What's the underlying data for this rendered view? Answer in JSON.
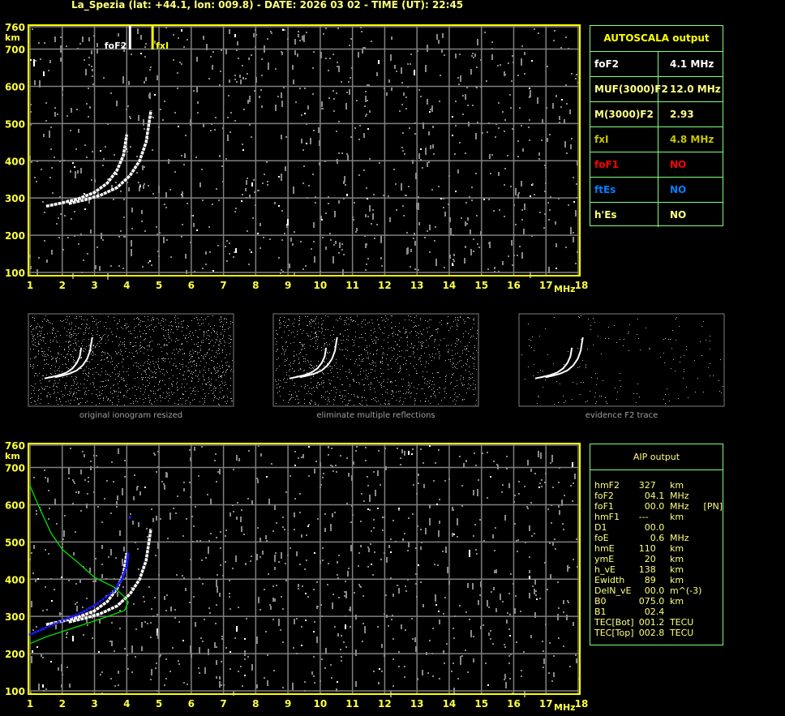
{
  "title": "La_Spezia (lat: +44.1, lon: 009.8) - DATE: 2026 03 02 - TIME (UT): 22:45",
  "colors": {
    "axis": "#ffff00",
    "grid": "#808080",
    "table_border": "#80ff80",
    "trace": "#ffffff",
    "aip_points": "#0000ff",
    "aip_profile": "#00e000",
    "foF1": "#ff0000",
    "ftEs": "#0080ff",
    "fxl": "#c8c800"
  },
  "autoscala": {
    "header": "AUTOSCALA output",
    "rows": [
      {
        "key": "foF2",
        "value": "4.1 MHz",
        "color": "#ffffff"
      },
      {
        "key": "MUF(3000)F2",
        "value": "12.0 MHz",
        "color": "#ffff80"
      },
      {
        "key": "M(3000)F2",
        "value": "2.93",
        "color": "#ffff80"
      },
      {
        "key": "fxI",
        "value": "4.8 MHz",
        "color": "#c8c800"
      },
      {
        "key": "foF1",
        "value": "NO",
        "color": "#ff0000"
      },
      {
        "key": "ftEs",
        "value": "NO",
        "color": "#0080ff"
      },
      {
        "key": "h'Es",
        "value": "NO",
        "color": "#ffff80"
      }
    ]
  },
  "aip": {
    "header": "AIP output",
    "rows": [
      {
        "key": "hmF2",
        "value": "327",
        "unit": "km",
        "extra": ""
      },
      {
        "key": "foF2",
        "value": "  04.1",
        "unit": "MHz",
        "extra": ""
      },
      {
        "key": "foF1",
        "value": "  00.0",
        "unit": "MHz",
        "extra": "[PN]"
      },
      {
        "key": "hmF1",
        "value": "---",
        "unit": "km",
        "extra": ""
      },
      {
        "key": "D1",
        "value": "  00.0",
        "unit": "",
        "extra": ""
      },
      {
        "key": "foE",
        "value": "    0.6",
        "unit": "MHz",
        "extra": ""
      },
      {
        "key": "hmE",
        "value": "110",
        "unit": "km",
        "extra": ""
      },
      {
        "key": "ymE",
        "value": "  20",
        "unit": "km",
        "extra": ""
      },
      {
        "key": "h_vE",
        "value": "138",
        "unit": "km",
        "extra": ""
      },
      {
        "key": "Ewidth",
        "value": "  89",
        "unit": "km",
        "extra": ""
      },
      {
        "key": "DelN_vE",
        "value": "  00.0",
        "unit": "m^(-3)",
        "extra": ""
      },
      {
        "key": "B0",
        "value": "075.0",
        "unit": "km",
        "extra": ""
      },
      {
        "key": "B1",
        "value": "  02.4",
        "unit": "",
        "extra": ""
      },
      {
        "key": "TEC[Bot]",
        "value": "001.2",
        "unit": "TECU",
        "extra": ""
      },
      {
        "key": "TEC[Top]",
        "value": "002.8",
        "unit": "TECU",
        "extra": ""
      }
    ]
  },
  "captions": [
    "original ionogram resized",
    "eliminate multiple reflections",
    "evidence F2 trace"
  ],
  "chart_data": [
    {
      "type": "scatter",
      "title": "",
      "xlabel": "MHz",
      "ylabel": "km",
      "xlim": [
        1,
        18
      ],
      "ylim": [
        100,
        760
      ],
      "xticks": [
        "1",
        "2",
        "3",
        "4",
        "5",
        "6",
        "7",
        "8",
        "9",
        "10",
        "11",
        "12",
        "13",
        "14",
        "15",
        "16",
        "17",
        "18"
      ],
      "yticks": [
        "100",
        "200",
        "300",
        "400",
        "500",
        "600",
        "700",
        "760"
      ],
      "grid": true,
      "markers": [
        {
          "label": "foF2",
          "x": 4.1,
          "color": "#ffffff"
        },
        {
          "label": "fxI",
          "x": 4.8,
          "color": "#ffff00"
        }
      ],
      "series": [
        {
          "points": [
            [
              1.5,
              278
            ],
            [
              2.0,
              287
            ],
            [
              2.5,
              298
            ],
            [
              3.0,
              315
            ],
            [
              3.4,
              340
            ],
            [
              3.7,
              375
            ],
            [
              3.9,
              415
            ],
            [
              4.0,
              470
            ]
          ]
        },
        {
          "points": [
            [
              2.2,
              285
            ],
            [
              2.7,
              295
            ],
            [
              3.2,
              308
            ],
            [
              3.7,
              328
            ],
            [
              4.1,
              360
            ],
            [
              4.4,
              400
            ],
            [
              4.6,
              450
            ],
            [
              4.75,
              535
            ]
          ]
        }
      ]
    },
    {
      "type": "line",
      "title": "",
      "xlabel": "MHz",
      "ylabel": "km",
      "xlim": [
        1,
        18
      ],
      "ylim": [
        100,
        760
      ],
      "xticks": [
        "1",
        "2",
        "3",
        "4",
        "5",
        "6",
        "7",
        "8",
        "9",
        "10",
        "11",
        "12",
        "13",
        "14",
        "15",
        "16",
        "17",
        "18"
      ],
      "yticks": [
        "100",
        "200",
        "300",
        "400",
        "500",
        "600",
        "700",
        "760"
      ],
      "grid": true,
      "series": [
        {
          "points": [
            [
              1.5,
              278
            ],
            [
              2.0,
              287
            ],
            [
              2.5,
              298
            ],
            [
              3.0,
              315
            ],
            [
              3.4,
              340
            ],
            [
              3.7,
              375
            ],
            [
              3.9,
              415
            ],
            [
              4.0,
              470
            ]
          ]
        },
        {
          "points": [
            [
              2.2,
              285
            ],
            [
              2.7,
              295
            ],
            [
              3.2,
              308
            ],
            [
              3.7,
              328
            ],
            [
              4.1,
              360
            ],
            [
              4.4,
              400
            ],
            [
              4.6,
              450
            ],
            [
              4.75,
              535
            ]
          ]
        },
        {
          "points": [
            [
              1.0,
              251
            ],
            [
              1.5,
              270
            ],
            [
              2.1,
              292
            ],
            [
              2.6,
              310
            ],
            [
              3.1,
              335
            ],
            [
              3.6,
              368
            ],
            [
              3.85,
              400
            ],
            [
              4.0,
              436
            ],
            [
              4.05,
              474
            ],
            [
              4.1,
              566
            ]
          ]
        },
        {
          "points": [
            [
              1.0,
              651
            ],
            [
              1.3,
              590
            ],
            [
              1.66,
              523
            ],
            [
              2.0,
              480
            ],
            [
              2.5,
              444
            ],
            [
              3.0,
              405
            ],
            [
              3.6,
              379
            ],
            [
              3.9,
              355
            ],
            [
              4.05,
              338
            ],
            [
              3.93,
              316
            ],
            [
              3.35,
              298
            ],
            [
              2.1,
              262
            ],
            [
              1.5,
              245
            ],
            [
              1.0,
              227
            ]
          ]
        }
      ]
    }
  ]
}
